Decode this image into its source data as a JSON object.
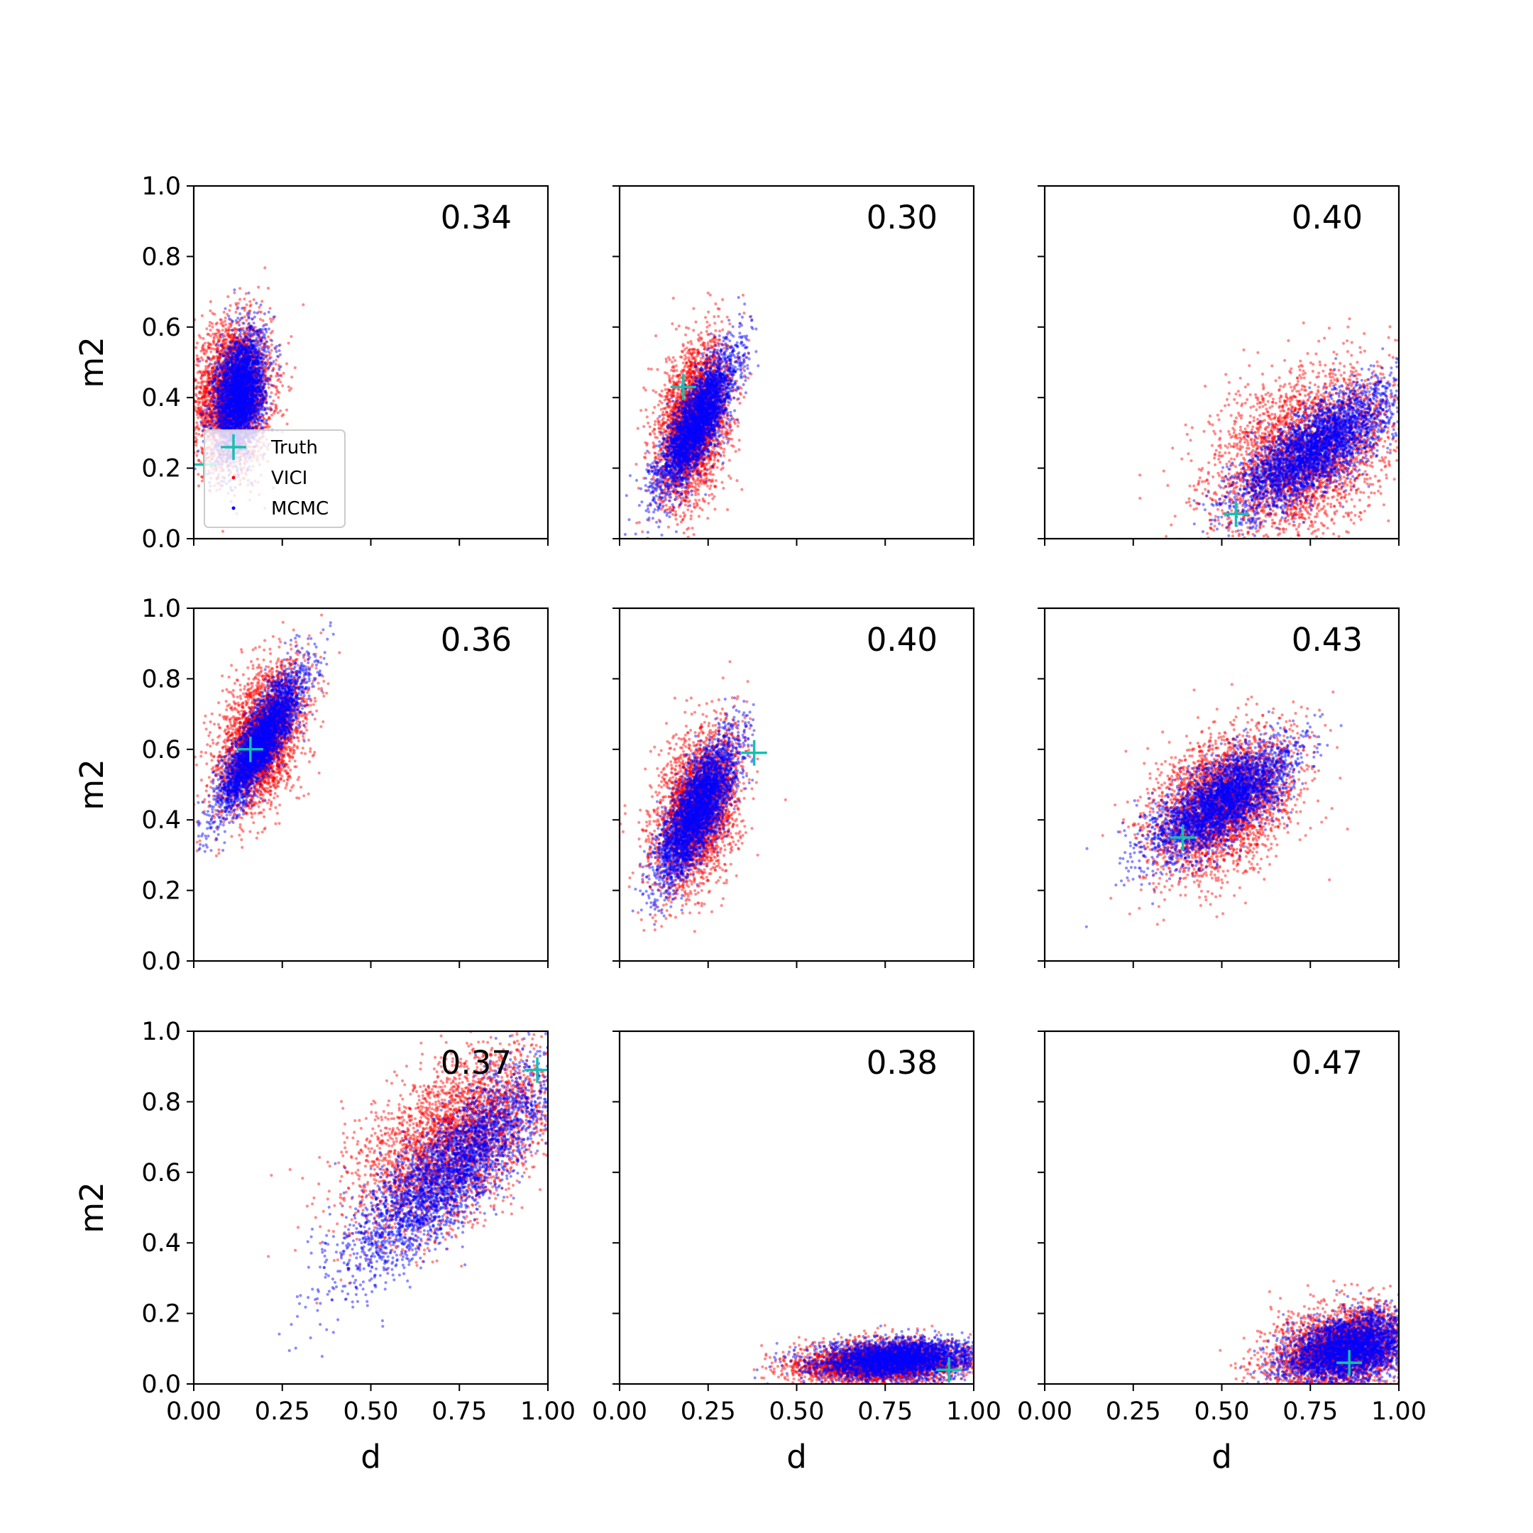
{
  "chart_data": {
    "type": "scatter",
    "layout": {
      "rows": 3,
      "cols": 3,
      "sharex": true,
      "sharey": true
    },
    "xlabel": "d",
    "ylabel": "m2",
    "xlim": [
      0.0,
      1.0
    ],
    "ylim": [
      0.0,
      1.0
    ],
    "xticks": [
      "0.00",
      "0.25",
      "0.50",
      "0.75",
      "1.00"
    ],
    "yticks": [
      "0.0",
      "0.2",
      "0.4",
      "0.6",
      "0.8",
      "1.0"
    ],
    "legend": {
      "placement": "lower-left of first panel",
      "entries": [
        "Truth",
        "VICI",
        "MCMC"
      ]
    },
    "colors": {
      "VICI": "#ff0000",
      "MCMC": "#0000ff",
      "Truth": "#17bfb0"
    },
    "panels": [
      {
        "annotation": "0.34",
        "truth": [
          0.03,
          0.21
        ],
        "vici": {
          "cx": 0.11,
          "cy": 0.41,
          "sx": 0.055,
          "sy": 0.1,
          "rho": 0.1
        },
        "mcmc": {
          "cx": 0.13,
          "cy": 0.41,
          "sx": 0.035,
          "sy": 0.085,
          "rho": 0.3
        }
      },
      {
        "annotation": "0.30",
        "truth": [
          0.18,
          0.43
        ],
        "vici": {
          "cx": 0.21,
          "cy": 0.33,
          "sx": 0.05,
          "sy": 0.11,
          "rho": 0.35
        },
        "mcmc": {
          "cx": 0.22,
          "cy": 0.33,
          "sx": 0.055,
          "sy": 0.1,
          "rho": 0.8
        }
      },
      {
        "annotation": "0.40",
        "truth": [
          0.54,
          0.07
        ],
        "vici": {
          "cx": 0.73,
          "cy": 0.24,
          "sx": 0.13,
          "sy": 0.12,
          "rho": 0.4
        },
        "mcmc": {
          "cx": 0.76,
          "cy": 0.25,
          "sx": 0.11,
          "sy": 0.09,
          "rho": 0.75
        }
      },
      {
        "annotation": "0.36",
        "truth": [
          0.16,
          0.6
        ],
        "vici": {
          "cx": 0.19,
          "cy": 0.63,
          "sx": 0.06,
          "sy": 0.1,
          "rho": 0.45
        },
        "mcmc": {
          "cx": 0.19,
          "cy": 0.62,
          "sx": 0.06,
          "sy": 0.1,
          "rho": 0.85
        }
      },
      {
        "annotation": "0.40",
        "truth": [
          0.38,
          0.59
        ],
        "vici": {
          "cx": 0.22,
          "cy": 0.43,
          "sx": 0.06,
          "sy": 0.11,
          "rho": 0.35
        },
        "mcmc": {
          "cx": 0.22,
          "cy": 0.43,
          "sx": 0.055,
          "sy": 0.1,
          "rho": 0.75
        }
      },
      {
        "annotation": "0.43",
        "truth": [
          0.39,
          0.35
        ],
        "vici": {
          "cx": 0.5,
          "cy": 0.44,
          "sx": 0.1,
          "sy": 0.1,
          "rho": 0.4
        },
        "mcmc": {
          "cx": 0.5,
          "cy": 0.45,
          "sx": 0.1,
          "sy": 0.08,
          "rho": 0.7
        }
      },
      {
        "annotation": "0.37",
        "truth": [
          0.97,
          0.89
        ],
        "vici": {
          "cx": 0.74,
          "cy": 0.69,
          "sx": 0.14,
          "sy": 0.13,
          "rho": 0.55
        },
        "mcmc": {
          "cx": 0.72,
          "cy": 0.6,
          "sx": 0.15,
          "sy": 0.15,
          "rho": 0.85
        }
      },
      {
        "annotation": "0.38",
        "truth": [
          0.93,
          0.04
        ],
        "vici": {
          "cx": 0.74,
          "cy": 0.06,
          "sx": 0.12,
          "sy": 0.03,
          "rho": 0.15
        },
        "mcmc": {
          "cx": 0.78,
          "cy": 0.07,
          "sx": 0.11,
          "sy": 0.028,
          "rho": 0.2
        }
      },
      {
        "annotation": "0.47",
        "truth": [
          0.86,
          0.06
        ],
        "vici": {
          "cx": 0.84,
          "cy": 0.1,
          "sx": 0.1,
          "sy": 0.06,
          "rho": 0.3
        },
        "mcmc": {
          "cx": 0.86,
          "cy": 0.1,
          "sx": 0.09,
          "sy": 0.05,
          "rho": 0.35
        }
      }
    ]
  }
}
